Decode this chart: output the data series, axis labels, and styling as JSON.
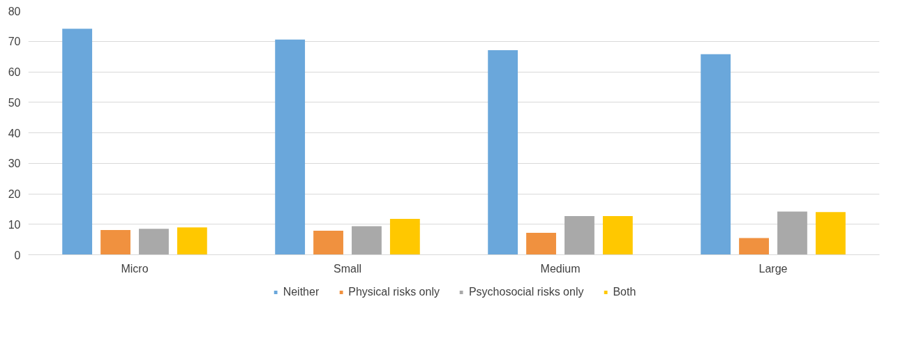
{
  "chart_data": {
    "type": "bar",
    "categories": [
      "Micro",
      "Small",
      "Medium",
      "Large"
    ],
    "series": [
      {
        "name": "Neither",
        "color": "#6aa7db",
        "values": [
          74.1,
          70.6,
          67.1,
          65.8
        ]
      },
      {
        "name": "Physical risks only",
        "color": "#f0913f",
        "values": [
          8.1,
          7.9,
          7.2,
          5.5
        ]
      },
      {
        "name": "Psychosocial risks only",
        "color": "#a9a9a9",
        "values": [
          8.5,
          9.4,
          12.7,
          14.2
        ]
      },
      {
        "name": "Both",
        "color": "#ffc800",
        "values": [
          9.0,
          11.8,
          12.7,
          14.0
        ]
      }
    ],
    "ylim": [
      0,
      80
    ],
    "yticks": [
      0,
      10,
      20,
      30,
      40,
      50,
      60,
      70,
      80
    ],
    "grid": "y",
    "legend": "bottom"
  }
}
